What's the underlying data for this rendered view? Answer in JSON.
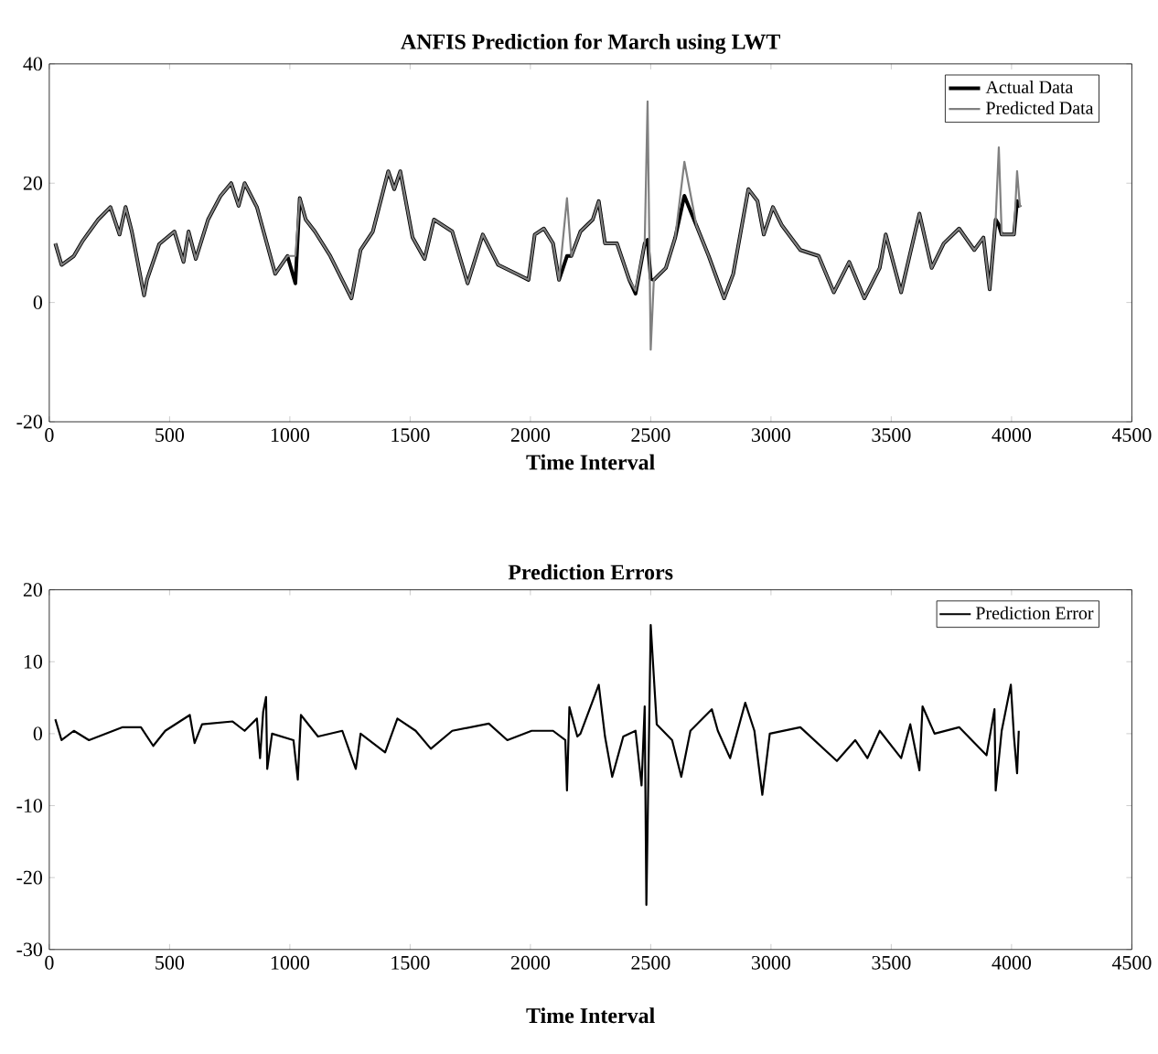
{
  "chart_data": [
    {
      "type": "line",
      "title": "ANFIS Prediction for March using LWT",
      "xlabel": "Time Interval",
      "xlim": [
        0,
        4500
      ],
      "ylim": [
        -20,
        40
      ],
      "xticks": [
        0,
        500,
        1000,
        1500,
        2000,
        2500,
        3000,
        3500,
        4000,
        4500
      ],
      "yticks": [
        -20,
        0,
        20,
        40
      ],
      "legend": "top right",
      "line_style": "solid",
      "x": [
        25,
        51,
        102,
        140,
        203,
        254,
        292,
        317,
        343,
        394,
        406,
        457,
        520,
        558,
        579,
        609,
        660,
        711,
        756,
        787,
        812,
        863,
        939,
        990,
        1023,
        1041,
        1066,
        1104,
        1168,
        1256,
        1294,
        1345,
        1409,
        1434,
        1459,
        1510,
        1560,
        1599,
        1675,
        1739,
        1802,
        1866,
        1942,
        1992,
        2018,
        2056,
        2094,
        2119,
        2152,
        2170,
        2208,
        2259,
        2284,
        2310,
        2360,
        2411,
        2437,
        2475,
        2487,
        2500,
        2513,
        2563,
        2602,
        2640,
        2690,
        2741,
        2805,
        2843,
        2906,
        2944,
        2970,
        3008,
        3046,
        3122,
        3198,
        3261,
        3325,
        3388,
        3452,
        3477,
        3541,
        3617,
        3668,
        3718,
        3782,
        3845,
        3883,
        3909,
        3934,
        3947,
        3959,
        4010,
        4023,
        4035
      ],
      "series": [
        {
          "name": "Actual Data",
          "color": "#000000",
          "values": [
            9.9,
            6.3,
            7.8,
            10.4,
            13.9,
            16,
            11.4,
            16,
            11.9,
            1.2,
            3.8,
            9.8,
            11.9,
            6.8,
            11.9,
            7.3,
            13.9,
            17.8,
            20,
            16.2,
            20,
            16,
            4.8,
            7.8,
            3.2,
            17.5,
            13.9,
            11.9,
            7.8,
            0.7,
            8.8,
            11.9,
            22,
            19,
            22,
            10.9,
            7.3,
            13.9,
            11.9,
            3.2,
            11.4,
            6.3,
            4.8,
            3.8,
            11.4,
            12.4,
            9.9,
            3.8,
            7.8,
            7.8,
            11.9,
            13.9,
            17,
            9.9,
            9.9,
            3.8,
            1.5,
            9.9,
            10.5,
            4,
            3.8,
            5.8,
            10.9,
            17.9,
            12.9,
            7.8,
            0.7,
            4.8,
            19,
            17,
            11.4,
            16,
            12.9,
            8.8,
            7.8,
            1.7,
            6.8,
            0.7,
            5.8,
            11.4,
            1.7,
            14.9,
            5.8,
            9.9,
            12.4,
            8.8,
            10.9,
            2.2,
            13.9,
            13,
            11.4,
            11.4,
            17,
            16
          ]
        },
        {
          "name": "Predicted Data",
          "color": "#808080",
          "values": [
            9.9,
            6.3,
            7.8,
            10.4,
            13.9,
            16,
            11.4,
            16,
            11.9,
            1.2,
            3.8,
            9.8,
            11.9,
            6.8,
            11.9,
            7.3,
            13.9,
            17.8,
            20,
            16.2,
            20,
            16,
            4.8,
            7.8,
            7.8,
            17.5,
            13.9,
            11.9,
            7.8,
            0.7,
            8.8,
            11.9,
            22,
            19,
            22,
            10.9,
            7.3,
            13.9,
            11.9,
            3.2,
            11.4,
            6.3,
            4.8,
            3.8,
            11.4,
            12.4,
            9.9,
            3.8,
            17.5,
            7.8,
            11.9,
            13.9,
            17,
            9.9,
            9.9,
            3.8,
            2,
            9.9,
            33.7,
            -7.9,
            3.8,
            5.8,
            10.9,
            23.6,
            12.9,
            7.8,
            0.7,
            4.8,
            19,
            17,
            11.4,
            16,
            12.9,
            8.8,
            7.8,
            1.7,
            6.8,
            0.7,
            5.8,
            11.4,
            1.7,
            14.9,
            5.8,
            9.9,
            12.4,
            8.8,
            10.9,
            2.2,
            13.9,
            26,
            11.4,
            11.4,
            22,
            16
          ]
        }
      ]
    },
    {
      "type": "line",
      "title": "Prediction Errors",
      "xlabel": "Time Interval",
      "xlim": [
        0,
        4500
      ],
      "ylim": [
        -30,
        20
      ],
      "xticks": [
        0,
        500,
        1000,
        1500,
        2000,
        2500,
        3000,
        3500,
        4000,
        4500
      ],
      "yticks": [
        -30,
        -20,
        -10,
        0,
        10,
        20
      ],
      "legend": "top right",
      "line_style": "solid",
      "x": [
        25,
        51,
        102,
        165,
        305,
        381,
        432,
        482,
        584,
        604,
        635,
        762,
        812,
        863,
        876,
        889,
        901,
        906,
        926,
        1015,
        1033,
        1046,
        1117,
        1218,
        1274,
        1294,
        1396,
        1447,
        1523,
        1586,
        1675,
        1827,
        1904,
        2005,
        2094,
        2145,
        2152,
        2162,
        2195,
        2208,
        2284,
        2310,
        2340,
        2386,
        2437,
        2462,
        2475,
        2482,
        2500,
        2525,
        2589,
        2627,
        2665,
        2754,
        2779,
        2830,
        2893,
        2931,
        2964,
        2995,
        3122,
        3274,
        3350,
        3401,
        3452,
        3541,
        3579,
        3617,
        3630,
        3680,
        3782,
        3896,
        3929,
        3934,
        3959,
        3997,
        4010,
        4023,
        4030
      ],
      "series": [
        {
          "name": "Prediction Error",
          "color": "#000000",
          "values": [
            2,
            -0.9,
            0.4,
            -0.9,
            0.9,
            0.9,
            -1.7,
            0.4,
            2.6,
            -1.3,
            1.3,
            1.7,
            0.4,
            2.1,
            -3.4,
            3,
            5.1,
            -4.9,
            0,
            -0.9,
            -6.4,
            2.6,
            -0.4,
            0.4,
            -4.9,
            0,
            -2.6,
            2.1,
            0.4,
            -2.1,
            0.4,
            1.4,
            -0.9,
            0.4,
            0.4,
            -0.9,
            -7.9,
            3.7,
            -0.4,
            0,
            6.8,
            -0.4,
            -6,
            -0.4,
            0.4,
            -7.2,
            3.8,
            -23.8,
            15.1,
            1.3,
            -0.9,
            -6,
            0.4,
            3.4,
            0.4,
            -3.4,
            4.3,
            0.4,
            -8.5,
            0,
            0.9,
            -3.8,
            -0.9,
            -3.4,
            0.4,
            -3.4,
            1.3,
            -5.1,
            3.8,
            0,
            0.9,
            -3,
            3.4,
            -7.9,
            0.4,
            6.8,
            -0.4,
            -5.5,
            0.4
          ]
        }
      ]
    }
  ]
}
